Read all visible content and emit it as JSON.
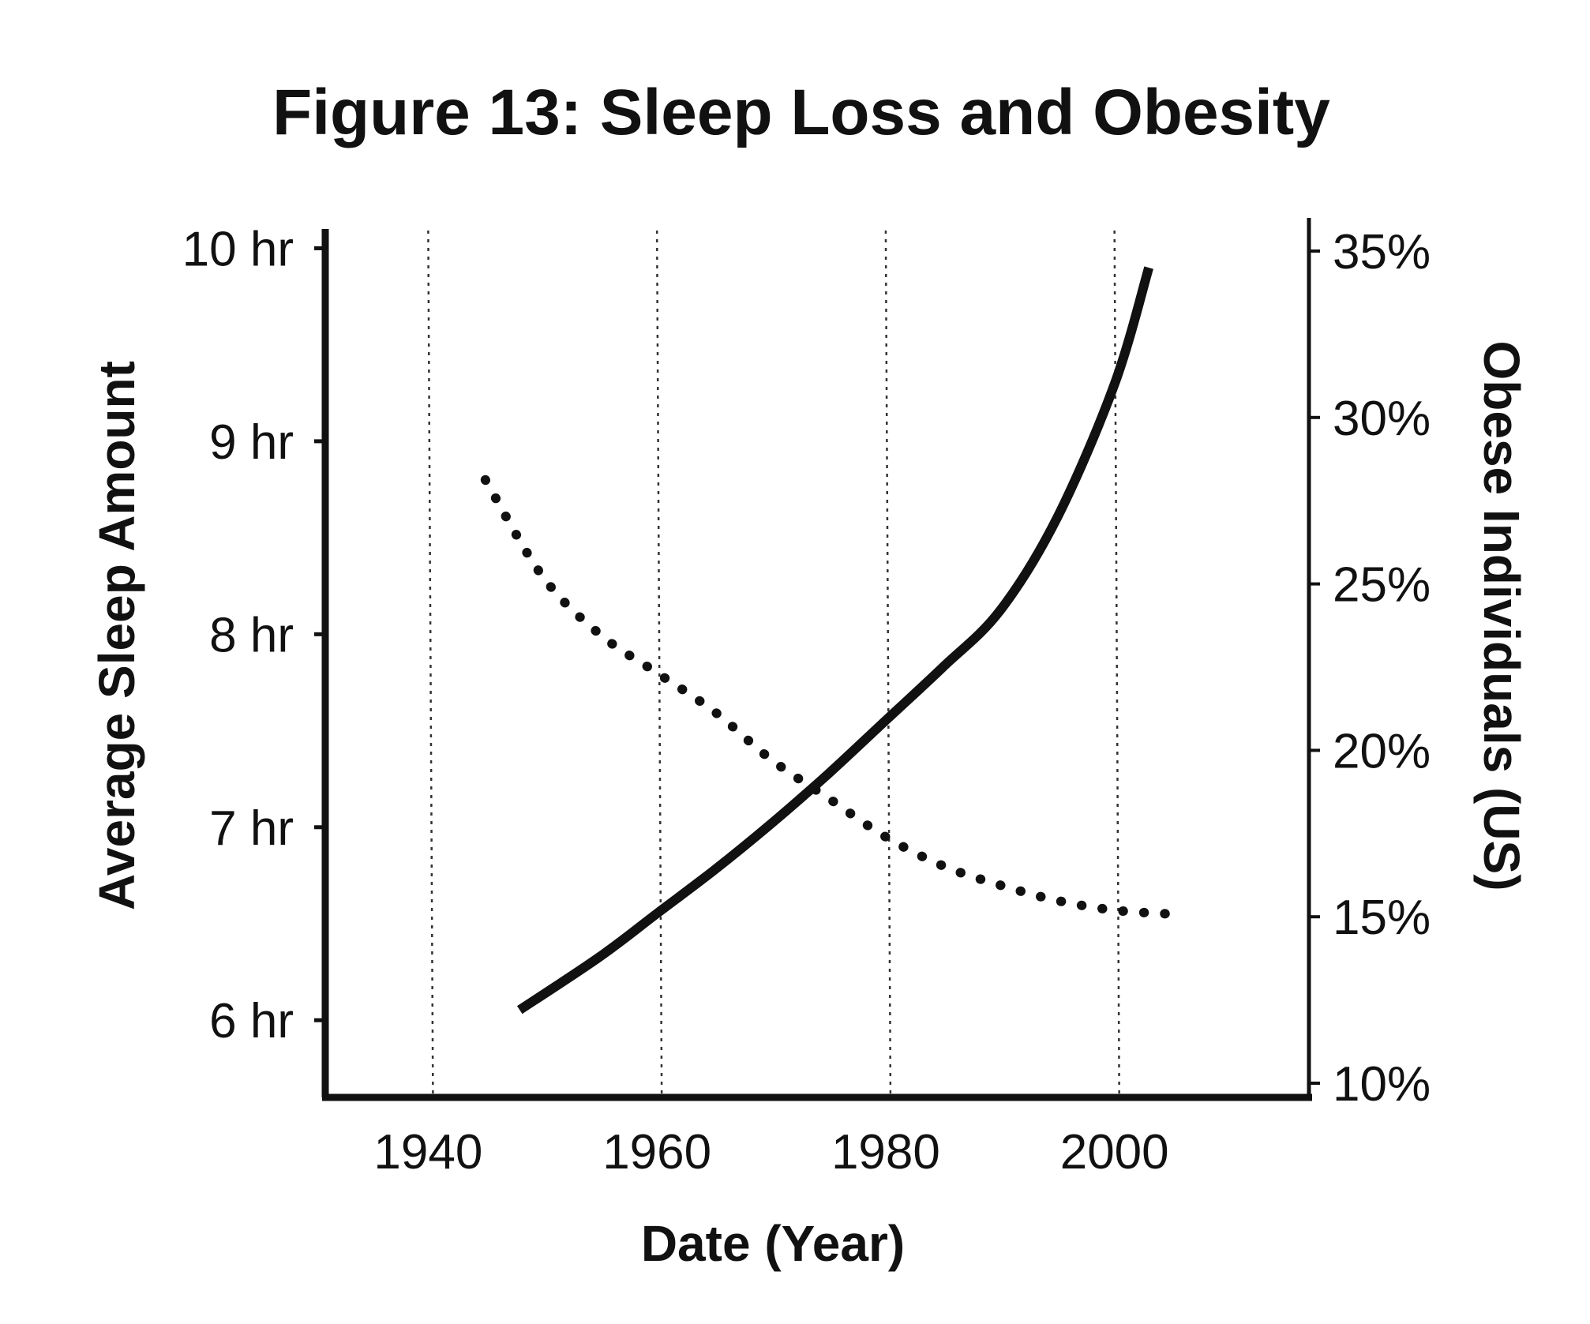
{
  "chart_data": {
    "type": "line",
    "title": "Figure 13: Sleep Loss and Obesity",
    "xlabel": "Date (Year)",
    "ylabel": "Average Sleep Amount",
    "y2label": "Obese Individuals (US)",
    "xlim": [
      1931,
      2017
    ],
    "ylim": [
      5.6,
      10.1
    ],
    "y2lim": [
      10,
      35
    ],
    "x_ticks": [
      1940,
      1960,
      1980,
      2000
    ],
    "x_tick_labels": [
      "1940",
      "1960",
      "1980",
      "2000"
    ],
    "y_ticks": [
      6,
      7,
      8,
      9,
      10
    ],
    "y_tick_labels": [
      "6 hr",
      "7 hr",
      "8 hr",
      "9 hr",
      "10 hr"
    ],
    "y2_ticks": [
      10,
      15,
      20,
      25,
      30,
      35
    ],
    "y2_tick_labels": [
      "10%",
      "15%",
      "20%",
      "25%",
      "30%",
      "35%"
    ],
    "vertical_gridlines": "dotted at 1940, 1960, 1980, 2000",
    "series": [
      {
        "axis": "left",
        "style": "dotted",
        "color": "#111111",
        "x": [
          1945,
          1950,
          1955,
          1960,
          1965,
          1970,
          1975,
          1980,
          1985,
          1990,
          1995,
          2000,
          2005
        ],
        "values": [
          8.8,
          8.3,
          8.0,
          7.8,
          7.6,
          7.35,
          7.15,
          6.95,
          6.8,
          6.7,
          6.62,
          6.57,
          6.55
        ]
      },
      {
        "axis": "right",
        "style": "solid",
        "color": "#111111",
        "x": [
          1948,
          1955,
          1960,
          1965,
          1970,
          1975,
          1980,
          1985,
          1990,
          1995,
          2000,
          2003
        ],
        "values": [
          12.2,
          13.8,
          15.1,
          16.4,
          17.8,
          19.3,
          20.9,
          22.5,
          24.2,
          27.0,
          31.0,
          34.5
        ]
      }
    ]
  }
}
